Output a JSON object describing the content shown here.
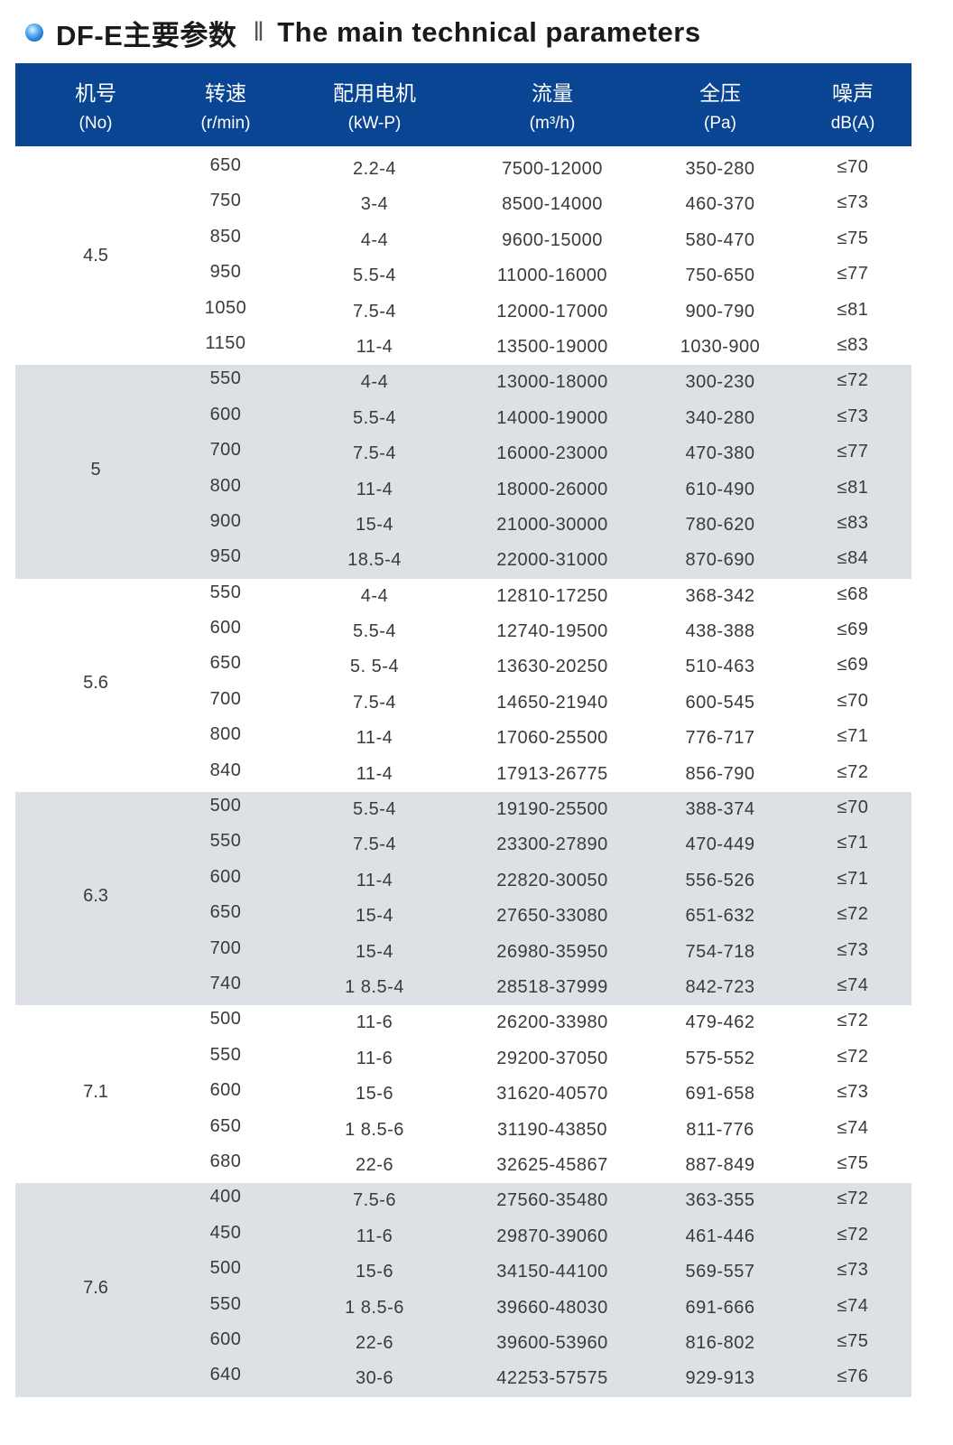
{
  "title": {
    "model": "DF-E主要参数",
    "separator": "‖",
    "english": "The main technical parameters"
  },
  "colors": {
    "header_bg": "#0a4593",
    "band_alt": "#dde1e6",
    "bullet": "#1570c8"
  },
  "columns": [
    {
      "cn": "机号",
      "en": "(No)"
    },
    {
      "cn": "转速",
      "en": "(r/min)"
    },
    {
      "cn": "配用电机",
      "en": "(kW-P)"
    },
    {
      "cn": "流量",
      "en": "(m³/h)"
    },
    {
      "cn": "全压",
      "en": "(Pa)"
    },
    {
      "cn": "噪声",
      "en": "dB(A)"
    }
  ],
  "groups": [
    {
      "model": "4.5",
      "rows": [
        [
          "650",
          "2.2-4",
          "7500-12000",
          "350-280",
          "≤70"
        ],
        [
          "750",
          "3-4",
          "8500-14000",
          "460-370",
          "≤73"
        ],
        [
          "850",
          "4-4",
          "9600-15000",
          "580-470",
          "≤75"
        ],
        [
          "950",
          "5.5-4",
          "11000-16000",
          "750-650",
          "≤77"
        ],
        [
          "1050",
          "7.5-4",
          "12000-17000",
          "900-790",
          "≤81"
        ],
        [
          "1150",
          "11-4",
          "13500-19000",
          "1030-900",
          "≤83"
        ]
      ]
    },
    {
      "model": "5",
      "rows": [
        [
          "550",
          "4-4",
          "13000-18000",
          "300-230",
          "≤72"
        ],
        [
          "600",
          "5.5-4",
          "14000-19000",
          "340-280",
          "≤73"
        ],
        [
          "700",
          "7.5-4",
          "16000-23000",
          "470-380",
          "≤77"
        ],
        [
          "800",
          "11-4",
          "18000-26000",
          "610-490",
          "≤81"
        ],
        [
          "900",
          "15-4",
          "21000-30000",
          "780-620",
          "≤83"
        ],
        [
          "950",
          "18.5-4",
          "22000-31000",
          "870-690",
          "≤84"
        ]
      ]
    },
    {
      "model": "5.6",
      "rows": [
        [
          "550",
          "4-4",
          "12810-17250",
          "368-342",
          "≤68"
        ],
        [
          "600",
          "5.5-4",
          "12740-19500",
          "438-388",
          "≤69"
        ],
        [
          "650",
          "5. 5-4",
          "13630-20250",
          "510-463",
          "≤69"
        ],
        [
          "700",
          "7.5-4",
          "14650-21940",
          "600-545",
          "≤70"
        ],
        [
          "800",
          "11-4",
          "17060-25500",
          "776-717",
          "≤71"
        ],
        [
          "840",
          "11-4",
          "17913-26775",
          "856-790",
          "≤72"
        ]
      ]
    },
    {
      "model": "6.3",
      "rows": [
        [
          "500",
          "5.5-4",
          "19190-25500",
          "388-374",
          "≤70"
        ],
        [
          "550",
          "7.5-4",
          "23300-27890",
          "470-449",
          "≤71"
        ],
        [
          "600",
          "11-4",
          "22820-30050",
          "556-526",
          "≤71"
        ],
        [
          "650",
          "15-4",
          "27650-33080",
          "651-632",
          "≤72"
        ],
        [
          "700",
          "15-4",
          "26980-35950",
          "754-718",
          "≤73"
        ],
        [
          "740",
          "1 8.5-4",
          "28518-37999",
          "842-723",
          "≤74"
        ]
      ]
    },
    {
      "model": "7.1",
      "rows": [
        [
          "500",
          "11-6",
          "26200-33980",
          "479-462",
          "≤72"
        ],
        [
          "550",
          "11-6",
          "29200-37050",
          "575-552",
          "≤72"
        ],
        [
          "600",
          "15-6",
          "31620-40570",
          "691-658",
          "≤73"
        ],
        [
          "650",
          "1 8.5-6",
          "31190-43850",
          "811-776",
          "≤74"
        ],
        [
          "680",
          "22-6",
          "32625-45867",
          "887-849",
          "≤75"
        ]
      ]
    },
    {
      "model": "7.6",
      "rows": [
        [
          "400",
          "7.5-6",
          "27560-35480",
          "363-355",
          "≤72"
        ],
        [
          "450",
          "11-6",
          "29870-39060",
          "461-446",
          "≤72"
        ],
        [
          "500",
          "15-6",
          "34150-44100",
          "569-557",
          "≤73"
        ],
        [
          "550",
          "1 8.5-6",
          "39660-48030",
          "691-666",
          "≤74"
        ],
        [
          "600",
          "22-6",
          "39600-53960",
          "816-802",
          "≤75"
        ],
        [
          "640",
          "30-6",
          "42253-57575",
          "929-913",
          "≤76"
        ]
      ]
    }
  ]
}
